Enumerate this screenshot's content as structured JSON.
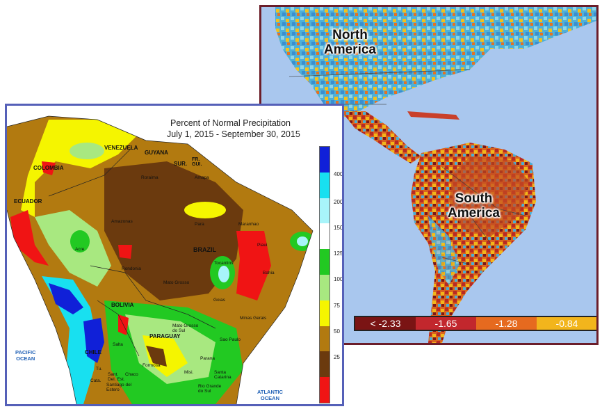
{
  "right_map": {
    "labels": {
      "north": "North\nAmerica",
      "south": "South\nAmerica"
    },
    "colorbar": [
      {
        "label": "< -2.33",
        "color": "#7a1414"
      },
      {
        "label": "-1.65",
        "color": "#c2272d"
      },
      {
        "label": "-1.28",
        "color": "#e66a1f"
      },
      {
        "label": "-0.84",
        "color": "#f2b51c"
      }
    ]
  },
  "left_map": {
    "title_line1": "Percent of Normal Precipitation",
    "title_line2": "July 1, 2015 - September 30, 2015",
    "legend": [
      {
        "color": "#1020d8",
        "label": "400"
      },
      {
        "color": "#18e0f0",
        "label": ""
      },
      {
        "color": "#a8f4fa",
        "label": "200"
      },
      {
        "color": "#ffffff",
        "label": "150"
      },
      {
        "color": "#22c922",
        "label": "125"
      },
      {
        "color": "#a8e880",
        "label": "100"
      },
      {
        "color": "#f5f500",
        "label": "75"
      },
      {
        "color": "#b27a10",
        "label": "50"
      },
      {
        "color": "#6b3a0e",
        "label": "25"
      },
      {
        "color": "#f01414",
        "label": ""
      }
    ],
    "countries": [
      "COLOMBIA",
      "VENEZUELA",
      "GUYANA",
      "SUR.",
      "FR. GUI.",
      "ECUADOR",
      "BRAZIL",
      "BOLIVIA",
      "PARAGUAY",
      "CHILE"
    ],
    "states": [
      "Amazonas",
      "Roraima",
      "Amapa",
      "Para",
      "Maranhao",
      "Piaui",
      "Bahia",
      "Acre",
      "Rondonia",
      "Mato Grosso",
      "Tocantins",
      "Goias",
      "Minas Gerais",
      "Mato Grosso do Sul",
      "Sao Paulo",
      "Parana",
      "Santa Catarina",
      "Rio Grande do Sul",
      "Formosa",
      "Chaco",
      "Misi.",
      "Santiago del Estero",
      "Salta",
      "Tu.",
      "Cata.",
      "Sant. Del. Est."
    ],
    "oceans": {
      "pacific": "PACIFIC\nOCEAN",
      "atlantic": "ATLANTIC\nOCEAN"
    }
  }
}
